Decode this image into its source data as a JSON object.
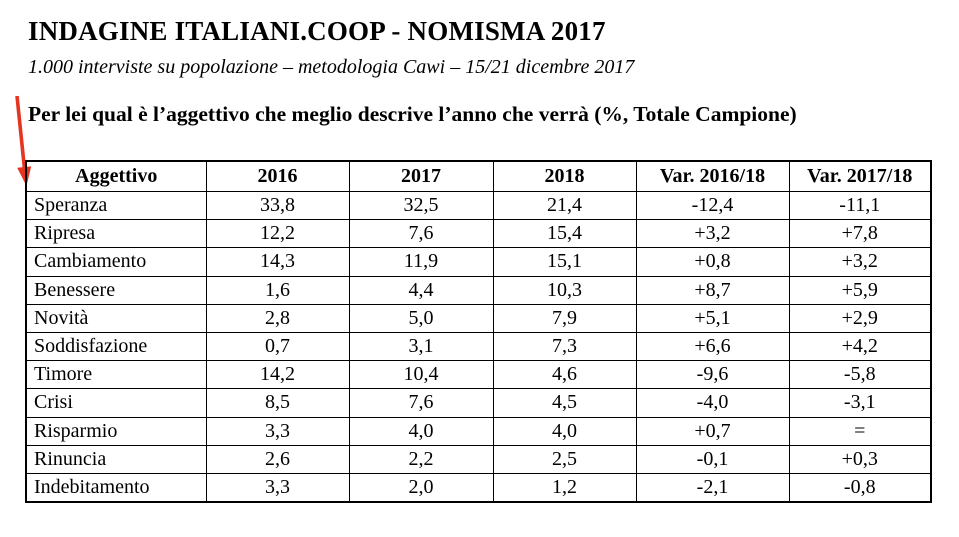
{
  "page": {
    "title": "INDAGINE ITALIANI.COOP - NOMISMA 2017",
    "subtitle": "1.000 interviste su popolazione – metodologia Cawi – 15/21 dicembre 2017",
    "question": "Per lei qual è l’aggettivo che meglio descrive l’anno che verrà (%, Totale Campione)"
  },
  "annotation": {
    "icon": "red-arrow-down-icon",
    "color": "#e5341f"
  },
  "table": {
    "columns": [
      "Aggettivo",
      "2016",
      "2017",
      "2018",
      "Var. 2016/18",
      "Var. 2017/18"
    ],
    "rows": [
      [
        "Speranza",
        "33,8",
        "32,5",
        "21,4",
        "-12,4",
        "-11,1"
      ],
      [
        "Ripresa",
        "12,2",
        "7,6",
        "15,4",
        "+3,2",
        "+7,8"
      ],
      [
        "Cambiamento",
        "14,3",
        "11,9",
        "15,1",
        "+0,8",
        "+3,2"
      ],
      [
        "Benessere",
        "1,6",
        "4,4",
        "10,3",
        "+8,7",
        "+5,9"
      ],
      [
        "Novità",
        "2,8",
        "5,0",
        "7,9",
        "+5,1",
        "+2,9"
      ],
      [
        "Soddisfazione",
        "0,7",
        "3,1",
        "7,3",
        "+6,6",
        "+4,2"
      ],
      [
        "Timore",
        "14,2",
        "10,4",
        "4,6",
        "-9,6",
        "-5,8"
      ],
      [
        "Crisi",
        "8,5",
        "7,6",
        "4,5",
        "-4,0",
        "-3,1"
      ],
      [
        "Risparmio",
        "3,3",
        "4,0",
        "4,0",
        "+0,7",
        "="
      ],
      [
        "Rinuncia",
        "2,6",
        "2,2",
        "2,5",
        "-0,1",
        "+0,3"
      ],
      [
        "Indebitamento",
        "3,3",
        "2,0",
        "1,2",
        "-2,1",
        "-0,8"
      ]
    ]
  }
}
